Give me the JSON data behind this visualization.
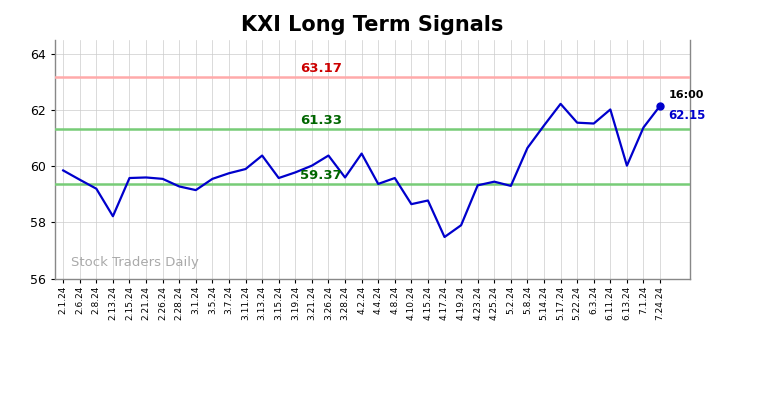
{
  "title": "KXI Long Term Signals",
  "watermark": "Stock Traders Daily",
  "hline_red": 63.17,
  "hline_green_upper": 61.33,
  "hline_green_lower": 59.37,
  "last_label": "16:00",
  "last_value": 62.15,
  "ylim": [
    56,
    64.5
  ],
  "yticks": [
    56,
    58,
    60,
    62,
    64
  ],
  "x_labels": [
    "2.1.24",
    "2.6.24",
    "2.8.24",
    "2.13.24",
    "2.15.24",
    "2.21.24",
    "2.26.24",
    "2.28.24",
    "3.1.24",
    "3.5.24",
    "3.7.24",
    "3.11.24",
    "3.13.24",
    "3.15.24",
    "3.19.24",
    "3.21.24",
    "3.26.24",
    "3.28.24",
    "4.2.24",
    "4.4.24",
    "4.8.24",
    "4.10.24",
    "4.15.24",
    "4.17.24",
    "4.19.24",
    "4.23.24",
    "4.25.24",
    "5.2.24",
    "5.8.24",
    "5.14.24",
    "5.17.24",
    "5.22.24",
    "6.3.24",
    "6.11.24",
    "6.13.24",
    "7.1.24",
    "7.24.24"
  ],
  "y_values": [
    59.85,
    59.52,
    59.2,
    58.22,
    59.58,
    59.6,
    59.55,
    59.28,
    59.15,
    59.55,
    59.75,
    59.9,
    60.38,
    59.58,
    59.78,
    60.02,
    60.38,
    59.6,
    60.45,
    59.37,
    59.58,
    58.65,
    58.78,
    57.48,
    57.9,
    59.32,
    59.45,
    59.3,
    60.65,
    61.45,
    62.22,
    61.55,
    61.52,
    62.02,
    60.02,
    61.38,
    62.15
  ],
  "line_color": "#0000cc",
  "red_line_color": "#ffaaaa",
  "red_label_color": "#cc0000",
  "green_line_color": "#77cc77",
  "green_label_color": "#006600",
  "title_fontsize": 15,
  "background_color": "#ffffff",
  "grid_color": "#cccccc",
  "watermark_color": "#aaaaaa",
  "spine_color": "#888888"
}
